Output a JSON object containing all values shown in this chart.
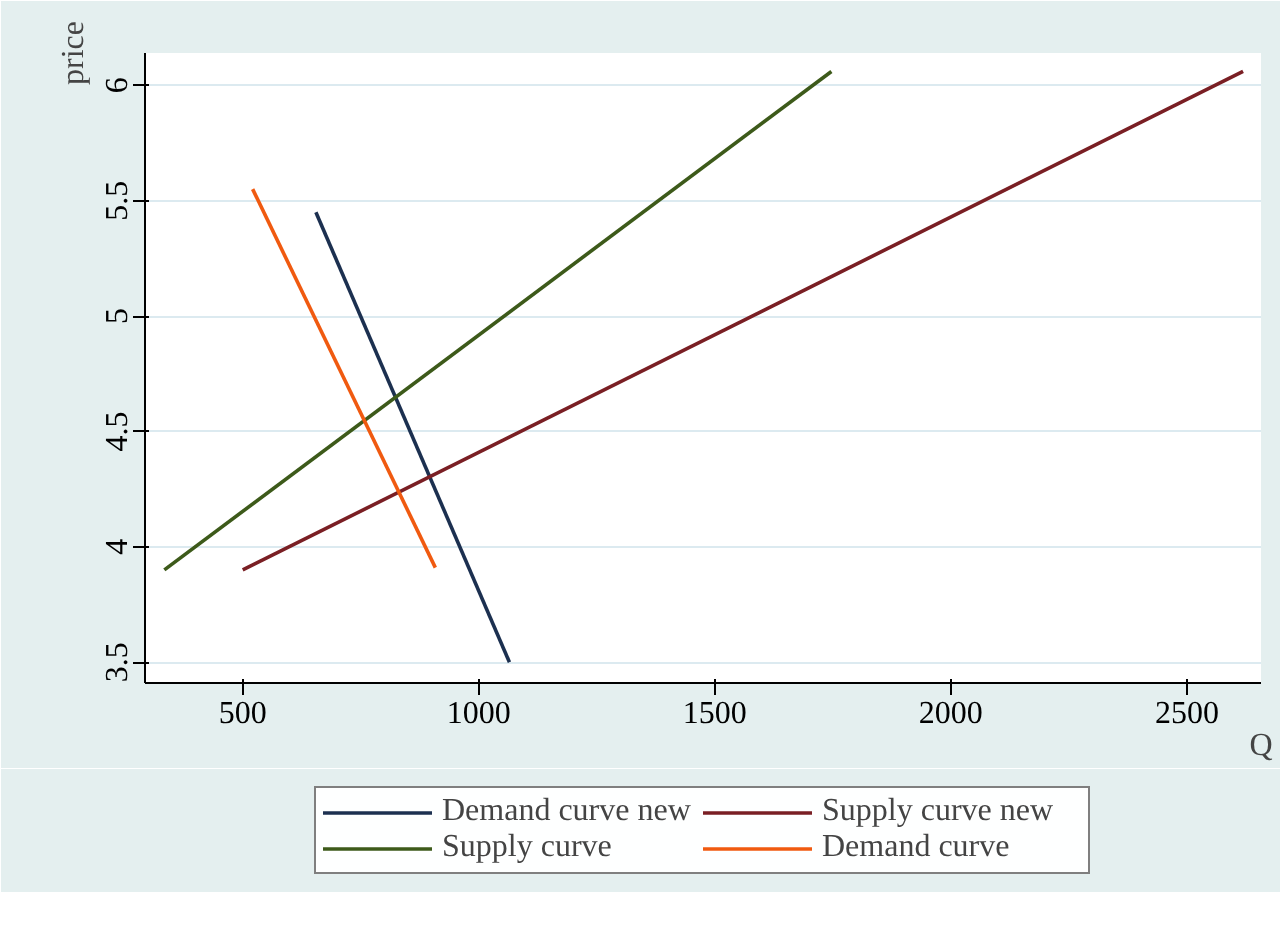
{
  "chart_data": {
    "type": "line",
    "xlabel": "Q",
    "ylabel": "price",
    "xlim": [
      293,
      2657
    ],
    "ylim": [
      3.41,
      6.14
    ],
    "xticks": [
      500,
      1000,
      1500,
      2000,
      2500
    ],
    "yticks": [
      {
        "value": 3.5,
        "label": "3.5"
      },
      4,
      4.5,
      5,
      5.5,
      6
    ],
    "grid": "y",
    "legend": "bottom",
    "marker": "none",
    "line_style": "solid",
    "series": [
      {
        "name": "Demand curve new",
        "color": "#1c3050",
        "x": [
          655,
          1065
        ],
        "values": [
          5.45,
          3.5
        ]
      },
      {
        "name": "Supply curve new",
        "color": "#7a1f24",
        "x": [
          500,
          2619
        ],
        "values": [
          3.9,
          6.06
        ]
      },
      {
        "name": "Supply curve",
        "color": "#3d5a1a",
        "x": [
          334,
          1747
        ],
        "values": [
          3.9,
          6.06
        ]
      },
      {
        "name": "Demand curve",
        "color": "#f05a10",
        "x": [
          521,
          908
        ],
        "values": [
          5.55,
          3.91
        ]
      }
    ]
  }
}
